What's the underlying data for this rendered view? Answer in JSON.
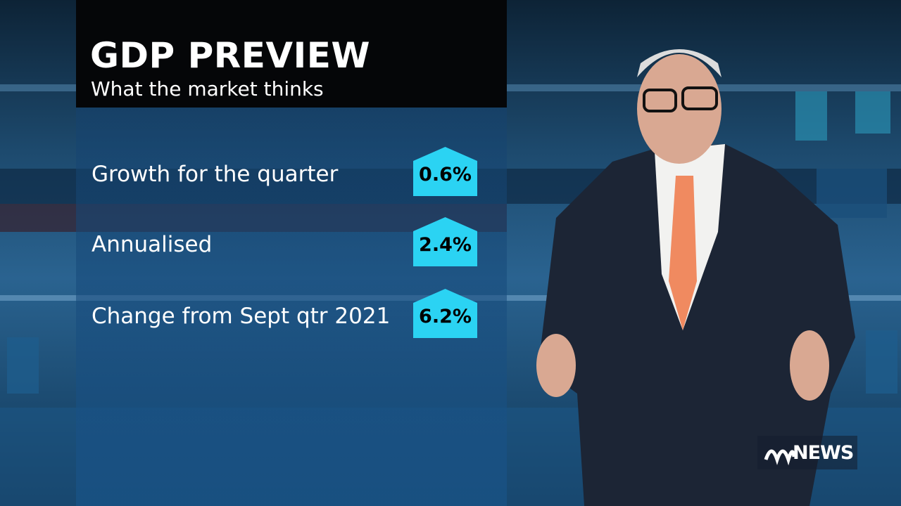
{
  "header": {
    "title": "GDP PREVIEW",
    "subtitle": "What the market thinks"
  },
  "rows": [
    {
      "label": "Growth for the quarter",
      "value": "0.6%"
    },
    {
      "label": "Annualised",
      "value": "2.4%"
    },
    {
      "label": "Change from Sept qtr 2021",
      "value": "6.2%"
    }
  ],
  "logo": {
    "text": "NEWS"
  }
}
